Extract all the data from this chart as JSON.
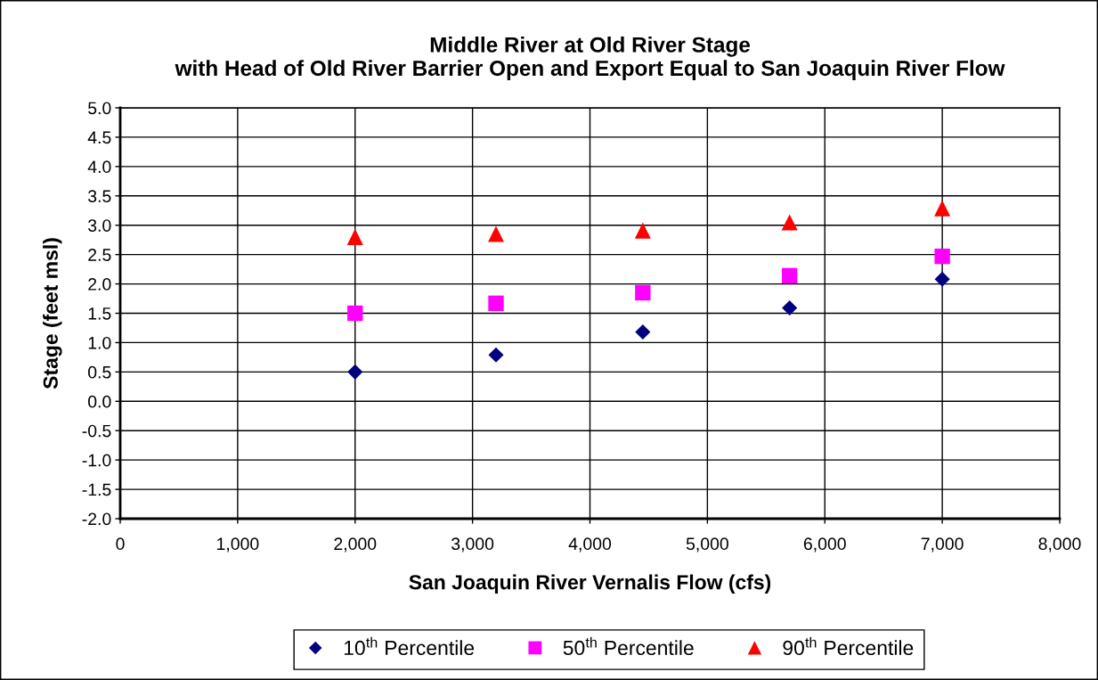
{
  "chart_data": {
    "type": "scatter",
    "title": "Middle River at Old River Stage\nwith Head of Old River Barrier Open and Export Equal to San Joaquin River Flow",
    "xlabel": "San Joaquin River Vernalis Flow (cfs)",
    "ylabel": "Stage (feet msl)",
    "x": [
      2000,
      3200,
      4450,
      5700,
      7000
    ],
    "series": [
      {
        "name": "10$^{th}$ Percentile",
        "color": "#000080",
        "marker": "diamond",
        "values": [
          0.5,
          0.79,
          1.18,
          1.59,
          2.08
        ]
      },
      {
        "name": "50$^{th}$ Percentile",
        "color": "#ff00ff",
        "marker": "square",
        "values": [
          1.5,
          1.67,
          1.85,
          2.14,
          2.47
        ]
      },
      {
        "name": "90$^{th}$ Percentile",
        "color": "#ff0000",
        "marker": "triangle",
        "values": [
          2.8,
          2.85,
          2.91,
          3.05,
          3.29
        ]
      }
    ],
    "xlim": [
      0,
      8000
    ],
    "ylim": [
      -2,
      5
    ],
    "xticks": [
      0,
      {
        "value": 1000,
        "label": "1,000"
      },
      {
        "value": 2000,
        "label": "2,000"
      },
      {
        "value": 3000,
        "label": "3,000"
      },
      {
        "value": 4000,
        "label": "4,000"
      },
      {
        "value": 5000,
        "label": "5,000"
      },
      {
        "value": 6000,
        "label": "6,000"
      },
      {
        "value": 7000,
        "label": "7,000"
      },
      {
        "value": 8000,
        "label": "8,000"
      }
    ],
    "yticks": [
      {
        "value": -2,
        "label": "-2.0"
      },
      {
        "value": -1.5,
        "label": "-1.5"
      },
      {
        "value": -1,
        "label": "-1.0"
      },
      {
        "value": -0.5,
        "label": "-0.5"
      },
      {
        "value": 0,
        "label": "0.0"
      },
      0.5,
      {
        "value": 1,
        "label": "1.0"
      },
      1.5,
      {
        "value": 2,
        "label": "2.0"
      },
      2.5,
      {
        "value": 3,
        "label": "3.0"
      },
      3.5,
      {
        "value": 4,
        "label": "4.0"
      },
      4.5,
      {
        "value": 5,
        "label": "5.0"
      }
    ],
    "grid": true,
    "legend": "bottom"
  }
}
